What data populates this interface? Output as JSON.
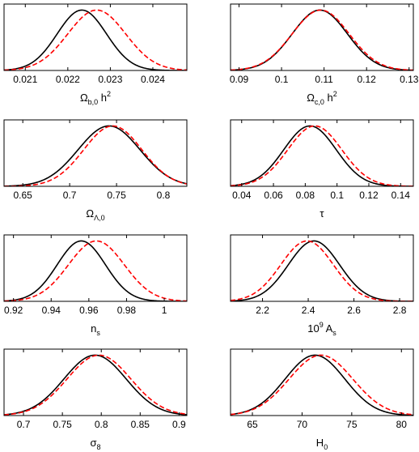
{
  "chart_data": [
    {
      "type": "line",
      "xlabel": "Ωb,0 h2",
      "xlabel_parts": {
        "base": "Ω",
        "sub": "b,0",
        "mid": " h",
        "sup": "2"
      },
      "xlim": [
        0.0205,
        0.0248
      ],
      "ylim": [
        0,
        1.1
      ],
      "xticks": [
        0.021,
        0.022,
        0.023,
        0.024
      ],
      "xtick_labels": [
        "0.021",
        "0.022",
        "0.023",
        "0.024"
      ],
      "grid": false,
      "series": [
        {
          "style": "solid",
          "color": "#000000",
          "mean": 0.02233,
          "sd": 0.00058
        },
        {
          "style": "dashed",
          "color": "#ff0000",
          "mean": 0.02268,
          "sd": 0.00068
        }
      ]
    },
    {
      "type": "line",
      "xlabel": "Ωc,0 h2",
      "xlabel_parts": {
        "base": "Ω",
        "sub": "c,0",
        "mid": " h",
        "sup": "2"
      },
      "xlim": [
        0.088,
        0.131
      ],
      "ylim": [
        0,
        1.1
      ],
      "xticks": [
        0.09,
        0.1,
        0.11,
        0.12,
        0.13
      ],
      "xtick_labels": [
        "0.09",
        "0.1",
        "0.11",
        "0.12",
        "0.13"
      ],
      "grid": false,
      "series": [
        {
          "style": "solid",
          "color": "#000000",
          "mean": 0.109,
          "sd": 0.0065
        },
        {
          "style": "dashed",
          "color": "#ff0000",
          "mean": 0.1092,
          "sd": 0.0067
        }
      ]
    },
    {
      "type": "line",
      "xlabel": "ΩΛ,0",
      "xlabel_parts": {
        "base": "Ω",
        "sub": "Λ,0",
        "mid": "",
        "sup": ""
      },
      "xlim": [
        0.63,
        0.825
      ],
      "ylim": [
        0,
        1.1
      ],
      "xticks": [
        0.65,
        0.7,
        0.75,
        0.8
      ],
      "xtick_labels": [
        "0.65",
        "0.7",
        "0.75",
        "0.8"
      ],
      "grid": false,
      "series": [
        {
          "style": "solid",
          "color": "#000000",
          "mean": 0.742,
          "sd": 0.033
        },
        {
          "style": "dashed",
          "color": "#ff0000",
          "mean": 0.746,
          "sd": 0.031
        }
      ]
    },
    {
      "type": "line",
      "xlabel": "τ",
      "xlabel_parts": {
        "base": "τ",
        "sub": "",
        "mid": "",
        "sup": ""
      },
      "xlim": [
        0.033,
        0.148
      ],
      "ylim": [
        0,
        1.1
      ],
      "xticks": [
        0.04,
        0.06,
        0.08,
        0.1,
        0.12,
        0.14
      ],
      "xtick_labels": [
        "0.04",
        "0.06",
        "0.08",
        "0.1",
        "0.12",
        "0.14"
      ],
      "grid": false,
      "series": [
        {
          "style": "solid",
          "color": "#000000",
          "mean": 0.083,
          "sd": 0.0165
        },
        {
          "style": "dashed",
          "color": "#ff0000",
          "mean": 0.086,
          "sd": 0.017
        }
      ]
    },
    {
      "type": "line",
      "xlabel": "ns",
      "xlabel_parts": {
        "base": "n",
        "sub": "s",
        "mid": "",
        "sup": ""
      },
      "xlim": [
        0.915,
        1.012
      ],
      "ylim": [
        0,
        1.1
      ],
      "xticks": [
        0.92,
        0.94,
        0.96,
        0.98,
        1.0
      ],
      "xtick_labels": [
        "0.92",
        "0.94",
        "0.96",
        "0.98",
        "1"
      ],
      "grid": false,
      "series": [
        {
          "style": "solid",
          "color": "#000000",
          "mean": 0.956,
          "sd": 0.0128
        },
        {
          "style": "dashed",
          "color": "#ff0000",
          "mean": 0.964,
          "sd": 0.0148
        }
      ]
    },
    {
      "type": "line",
      "xlabel": "109 As",
      "xlabel_parts": {
        "base": "10",
        "sup": "9",
        "mid": " A",
        "sub": "s"
      },
      "xlim": [
        2.06,
        2.86
      ],
      "ylim": [
        0,
        1.1
      ],
      "xticks": [
        2.2,
        2.4,
        2.6,
        2.8
      ],
      "xtick_labels": [
        "2.2",
        "2.4",
        "2.6",
        "2.8"
      ],
      "grid": false,
      "series": [
        {
          "style": "solid",
          "color": "#000000",
          "mean": 2.425,
          "sd": 0.112
        },
        {
          "style": "dashed",
          "color": "#ff0000",
          "mean": 2.395,
          "sd": 0.115
        }
      ]
    },
    {
      "type": "line",
      "xlabel": "σ8",
      "xlabel_parts": {
        "base": "σ",
        "sub": "8",
        "mid": "",
        "sup": ""
      },
      "xlim": [
        0.675,
        0.91
      ],
      "ylim": [
        0,
        1.1
      ],
      "xticks": [
        0.7,
        0.75,
        0.8,
        0.85,
        0.9
      ],
      "xtick_labels": [
        "0.7",
        "0.75",
        "0.8",
        "0.85",
        "0.9"
      ],
      "grid": false,
      "series": [
        {
          "style": "solid",
          "color": "#000000",
          "mean": 0.792,
          "sd": 0.04
        },
        {
          "style": "dashed",
          "color": "#ff0000",
          "mean": 0.797,
          "sd": 0.041
        }
      ]
    },
    {
      "type": "line",
      "xlabel": "H0",
      "xlabel_parts": {
        "base": "H",
        "sub": "0",
        "mid": "",
        "sup": ""
      },
      "xlim": [
        62.8,
        81.2
      ],
      "ylim": [
        0,
        1.1
      ],
      "xticks": [
        65,
        70,
        75,
        80
      ],
      "xtick_labels": [
        "65",
        "70",
        "75",
        "80"
      ],
      "grid": false,
      "series": [
        {
          "style": "solid",
          "color": "#000000",
          "mean": 71.3,
          "sd": 3.0
        },
        {
          "style": "dashed",
          "color": "#ff0000",
          "mean": 71.9,
          "sd": 3.2
        }
      ]
    }
  ]
}
